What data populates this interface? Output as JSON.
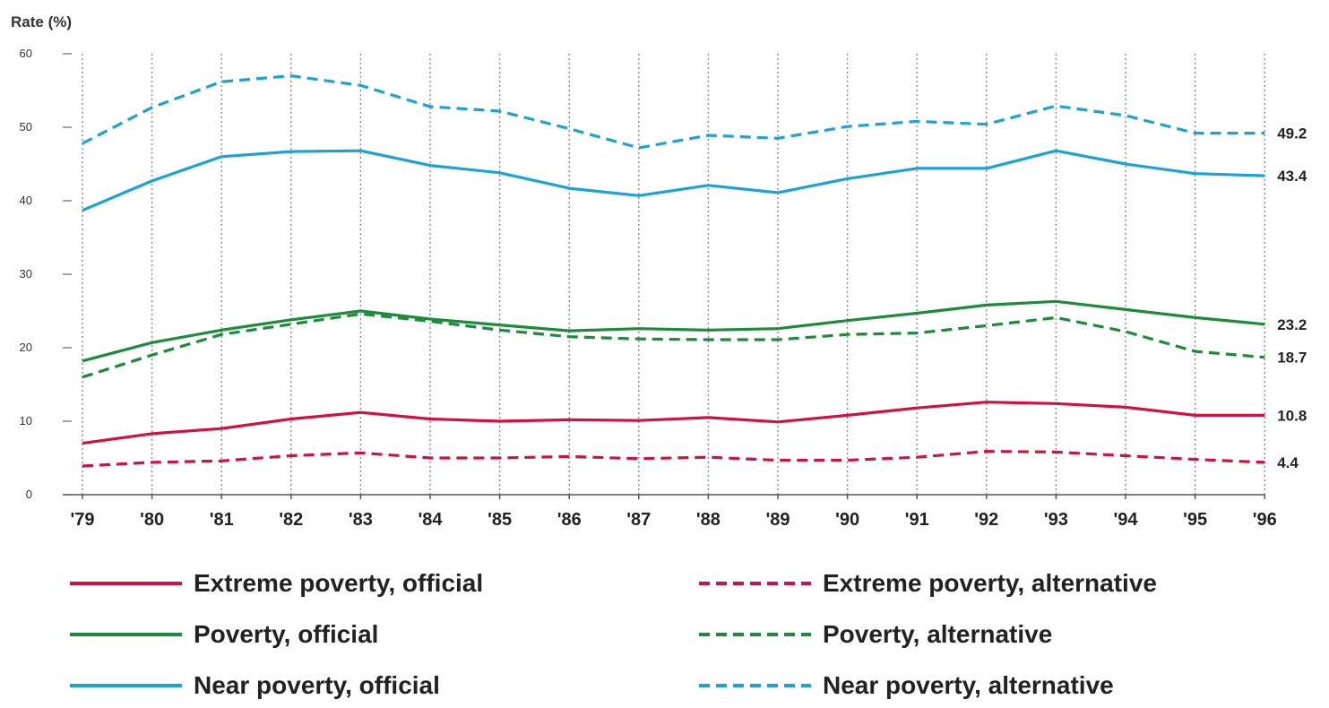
{
  "chart_data": {
    "type": "line",
    "ylabel": "Rate (%)",
    "xlabel": "",
    "ylim": [
      0,
      60
    ],
    "yticks": [
      0,
      10,
      20,
      30,
      40,
      50,
      60
    ],
    "grid": "vertical dotted",
    "legend_position": "bottom",
    "categories": [
      "'79",
      "'80",
      "'81",
      "'82",
      "'83",
      "'84",
      "'85",
      "'86",
      "'87",
      "'88",
      "'89",
      "'90",
      "'91",
      "'92",
      "'93",
      "'94",
      "'95",
      "'96"
    ],
    "series": [
      {
        "name": "Extreme poverty, official",
        "color": "#d4113e",
        "dashed": false,
        "values": [
          7.0,
          8.3,
          9.0,
          10.3,
          11.2,
          10.3,
          10.0,
          10.2,
          10.1,
          10.5,
          9.9,
          10.8,
          11.8,
          12.6,
          12.4,
          11.9,
          10.8,
          10.8
        ],
        "end_label": "10.8"
      },
      {
        "name": "Extreme poverty, alternative",
        "color": "#d4113e",
        "dashed": true,
        "values": [
          3.9,
          4.4,
          4.6,
          5.3,
          5.7,
          5.0,
          5.0,
          5.2,
          4.9,
          5.1,
          4.7,
          4.7,
          5.1,
          5.9,
          5.8,
          5.3,
          4.8,
          4.4
        ],
        "end_label": "4.4"
      },
      {
        "name": "Poverty, official",
        "color": "#1a8c3a",
        "dashed": false,
        "values": [
          18.2,
          20.7,
          22.4,
          23.8,
          25.0,
          23.9,
          23.1,
          22.3,
          22.6,
          22.4,
          22.6,
          23.7,
          24.7,
          25.8,
          26.3,
          25.2,
          24.1,
          23.2
        ],
        "end_label": "23.2"
      },
      {
        "name": "Poverty, alternative",
        "color": "#1a8c3a",
        "dashed": true,
        "values": [
          16.0,
          19.0,
          21.8,
          23.2,
          24.6,
          23.6,
          22.4,
          21.5,
          21.2,
          21.1,
          21.1,
          21.8,
          22.0,
          23.0,
          24.1,
          22.2,
          19.5,
          18.7
        ],
        "end_label": "18.7"
      },
      {
        "name": "Near poverty, official",
        "color": "#1aa3d9",
        "dashed": false,
        "values": [
          38.7,
          42.7,
          46.0,
          46.7,
          46.8,
          44.8,
          43.8,
          41.7,
          40.7,
          42.1,
          41.1,
          43.0,
          44.4,
          44.4,
          46.8,
          45.0,
          43.7,
          43.4
        ],
        "end_label": "43.4"
      },
      {
        "name": "Near poverty, alternative",
        "color": "#1aa3d9",
        "dashed": true,
        "values": [
          47.8,
          52.7,
          56.2,
          57.0,
          55.7,
          52.8,
          52.2,
          49.8,
          47.2,
          48.9,
          48.5,
          50.1,
          50.8,
          50.4,
          52.9,
          51.6,
          49.2,
          49.2
        ],
        "end_label": "49.2"
      }
    ]
  }
}
